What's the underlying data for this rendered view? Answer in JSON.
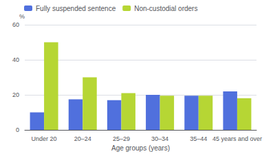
{
  "chart_data": {
    "type": "bar",
    "categories": [
      "Under 20",
      "20–24",
      "25–29",
      "30–34",
      "35–44",
      "45 years and over"
    ],
    "series": [
      {
        "name": "Fully suspended sentence",
        "values": [
          10,
          17.5,
          17,
          20,
          19.5,
          22
        ]
      },
      {
        "name": "Non-custodial orders",
        "values": [
          50,
          30,
          21,
          19.5,
          19.5,
          18
        ]
      }
    ],
    "xlabel": "Age groups (years)",
    "ylabel": "%",
    "ylim": [
      0,
      60
    ],
    "yticks": [
      0,
      20,
      40,
      60
    ],
    "grid": true,
    "legend": "upper left"
  }
}
